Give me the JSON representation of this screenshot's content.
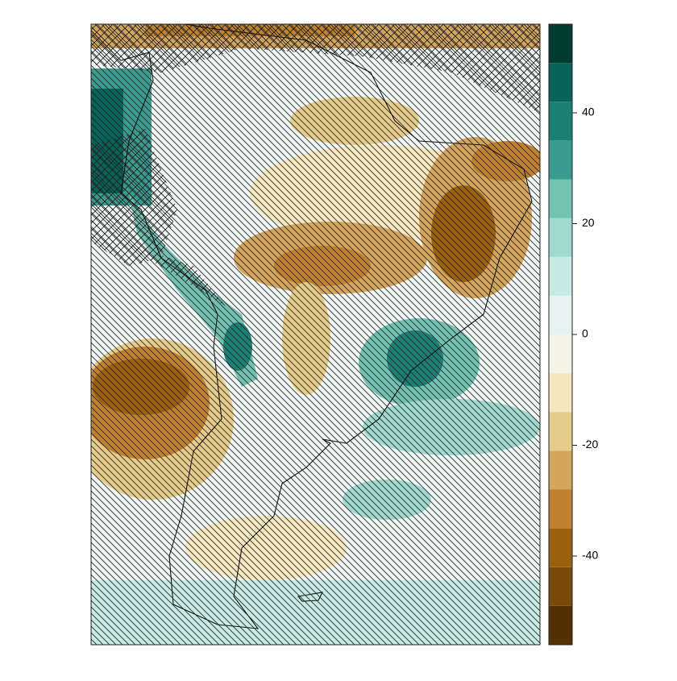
{
  "colorbar": {
    "bins": [
      -56,
      -49,
      -42,
      -35,
      -28,
      -21,
      -14,
      -7,
      0,
      7,
      14,
      21,
      28,
      35,
      42,
      49,
      56
    ],
    "colors": [
      "#543005",
      "#7a4a0a",
      "#9c610f",
      "#bf812d",
      "#d4a55a",
      "#e6cc8a",
      "#f4e6be",
      "#f5f2e6",
      "#e6f2ef",
      "#c7eae5",
      "#9fd9cf",
      "#72c1b3",
      "#3a9b8f",
      "#1c7f74",
      "#066458",
      "#003c30"
    ],
    "ylim": [
      -56,
      56
    ],
    "yticks": [
      -40,
      -20,
      0,
      20,
      40
    ]
  }
}
